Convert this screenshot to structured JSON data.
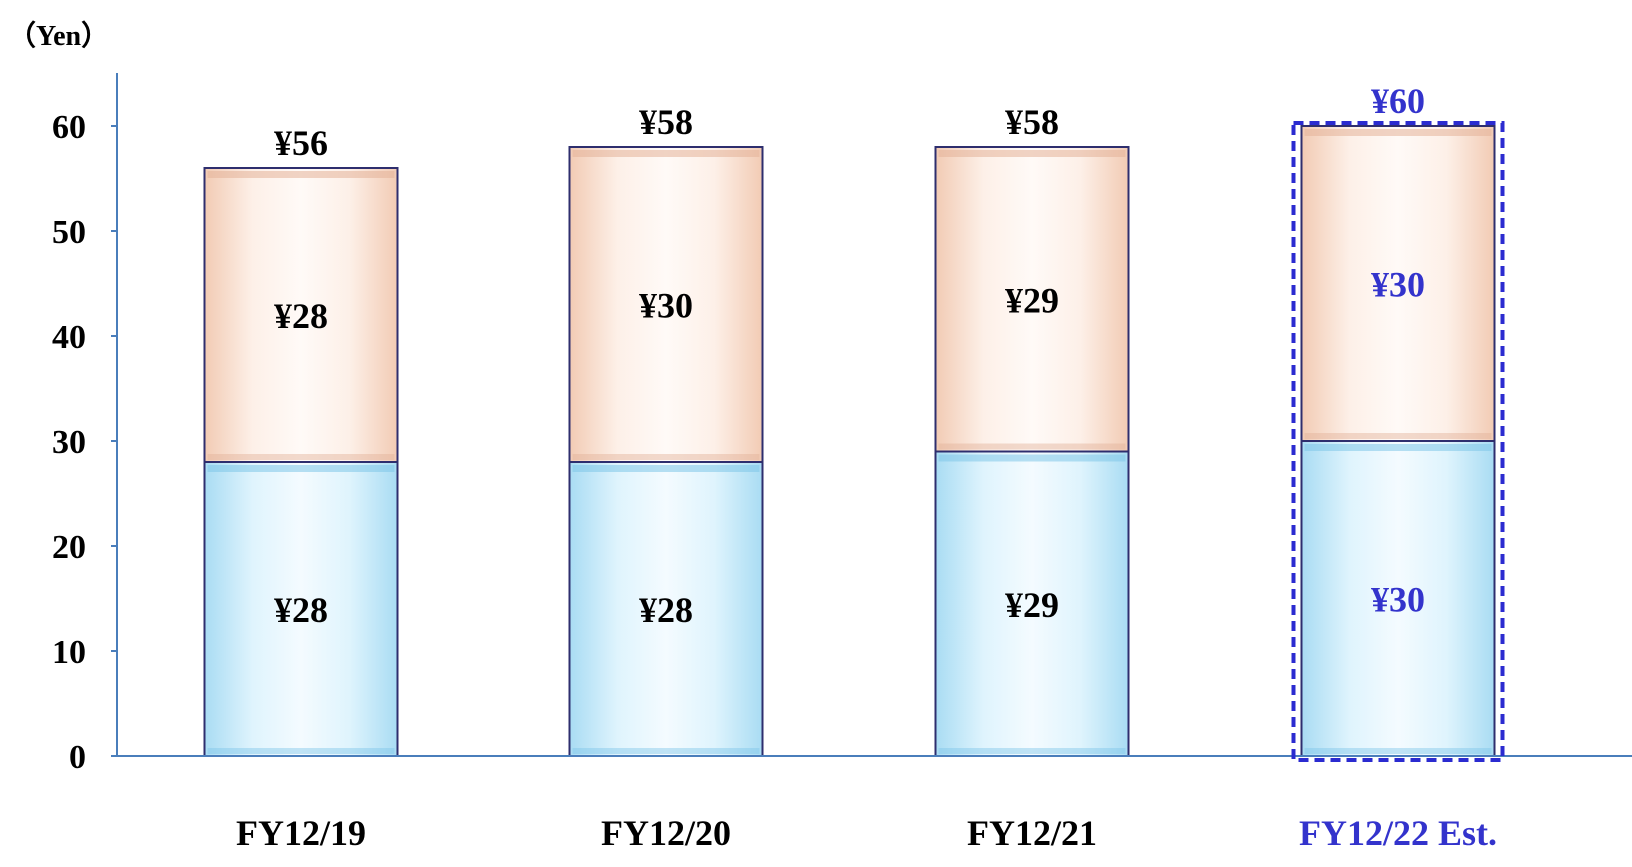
{
  "chart_data": {
    "type": "bar",
    "stacked": true,
    "unit_label": "（Yen）",
    "categories": [
      "FY12/19",
      "FY12/20",
      "FY12/21",
      "FY12/22 Est."
    ],
    "series": [
      {
        "values": [
          28,
          28,
          29,
          30
        ],
        "value_labels": [
          "¥28",
          "¥28",
          "¥29",
          "¥30"
        ],
        "color": "#c6ecfb"
      },
      {
        "values": [
          28,
          30,
          29,
          30
        ],
        "value_labels": [
          "¥28",
          "¥30",
          "¥29",
          "¥30"
        ],
        "color": "#fbe3d6"
      }
    ],
    "totals": [
      56,
      58,
      58,
      60
    ],
    "total_labels": [
      "¥56",
      "¥58",
      "¥58",
      "¥60"
    ],
    "yticks": [
      0,
      10,
      20,
      30,
      40,
      50,
      60
    ],
    "ylim": [
      0,
      60
    ],
    "grid": false,
    "legend": "none",
    "highlight_category": "FY12/22 Est.",
    "colors": {
      "text": "#000000",
      "highlight_text": "#3333cc",
      "axis": "#4a7ebb",
      "bar_border": "#2e2e6e",
      "highlight_border": "#2b2bd0"
    }
  }
}
